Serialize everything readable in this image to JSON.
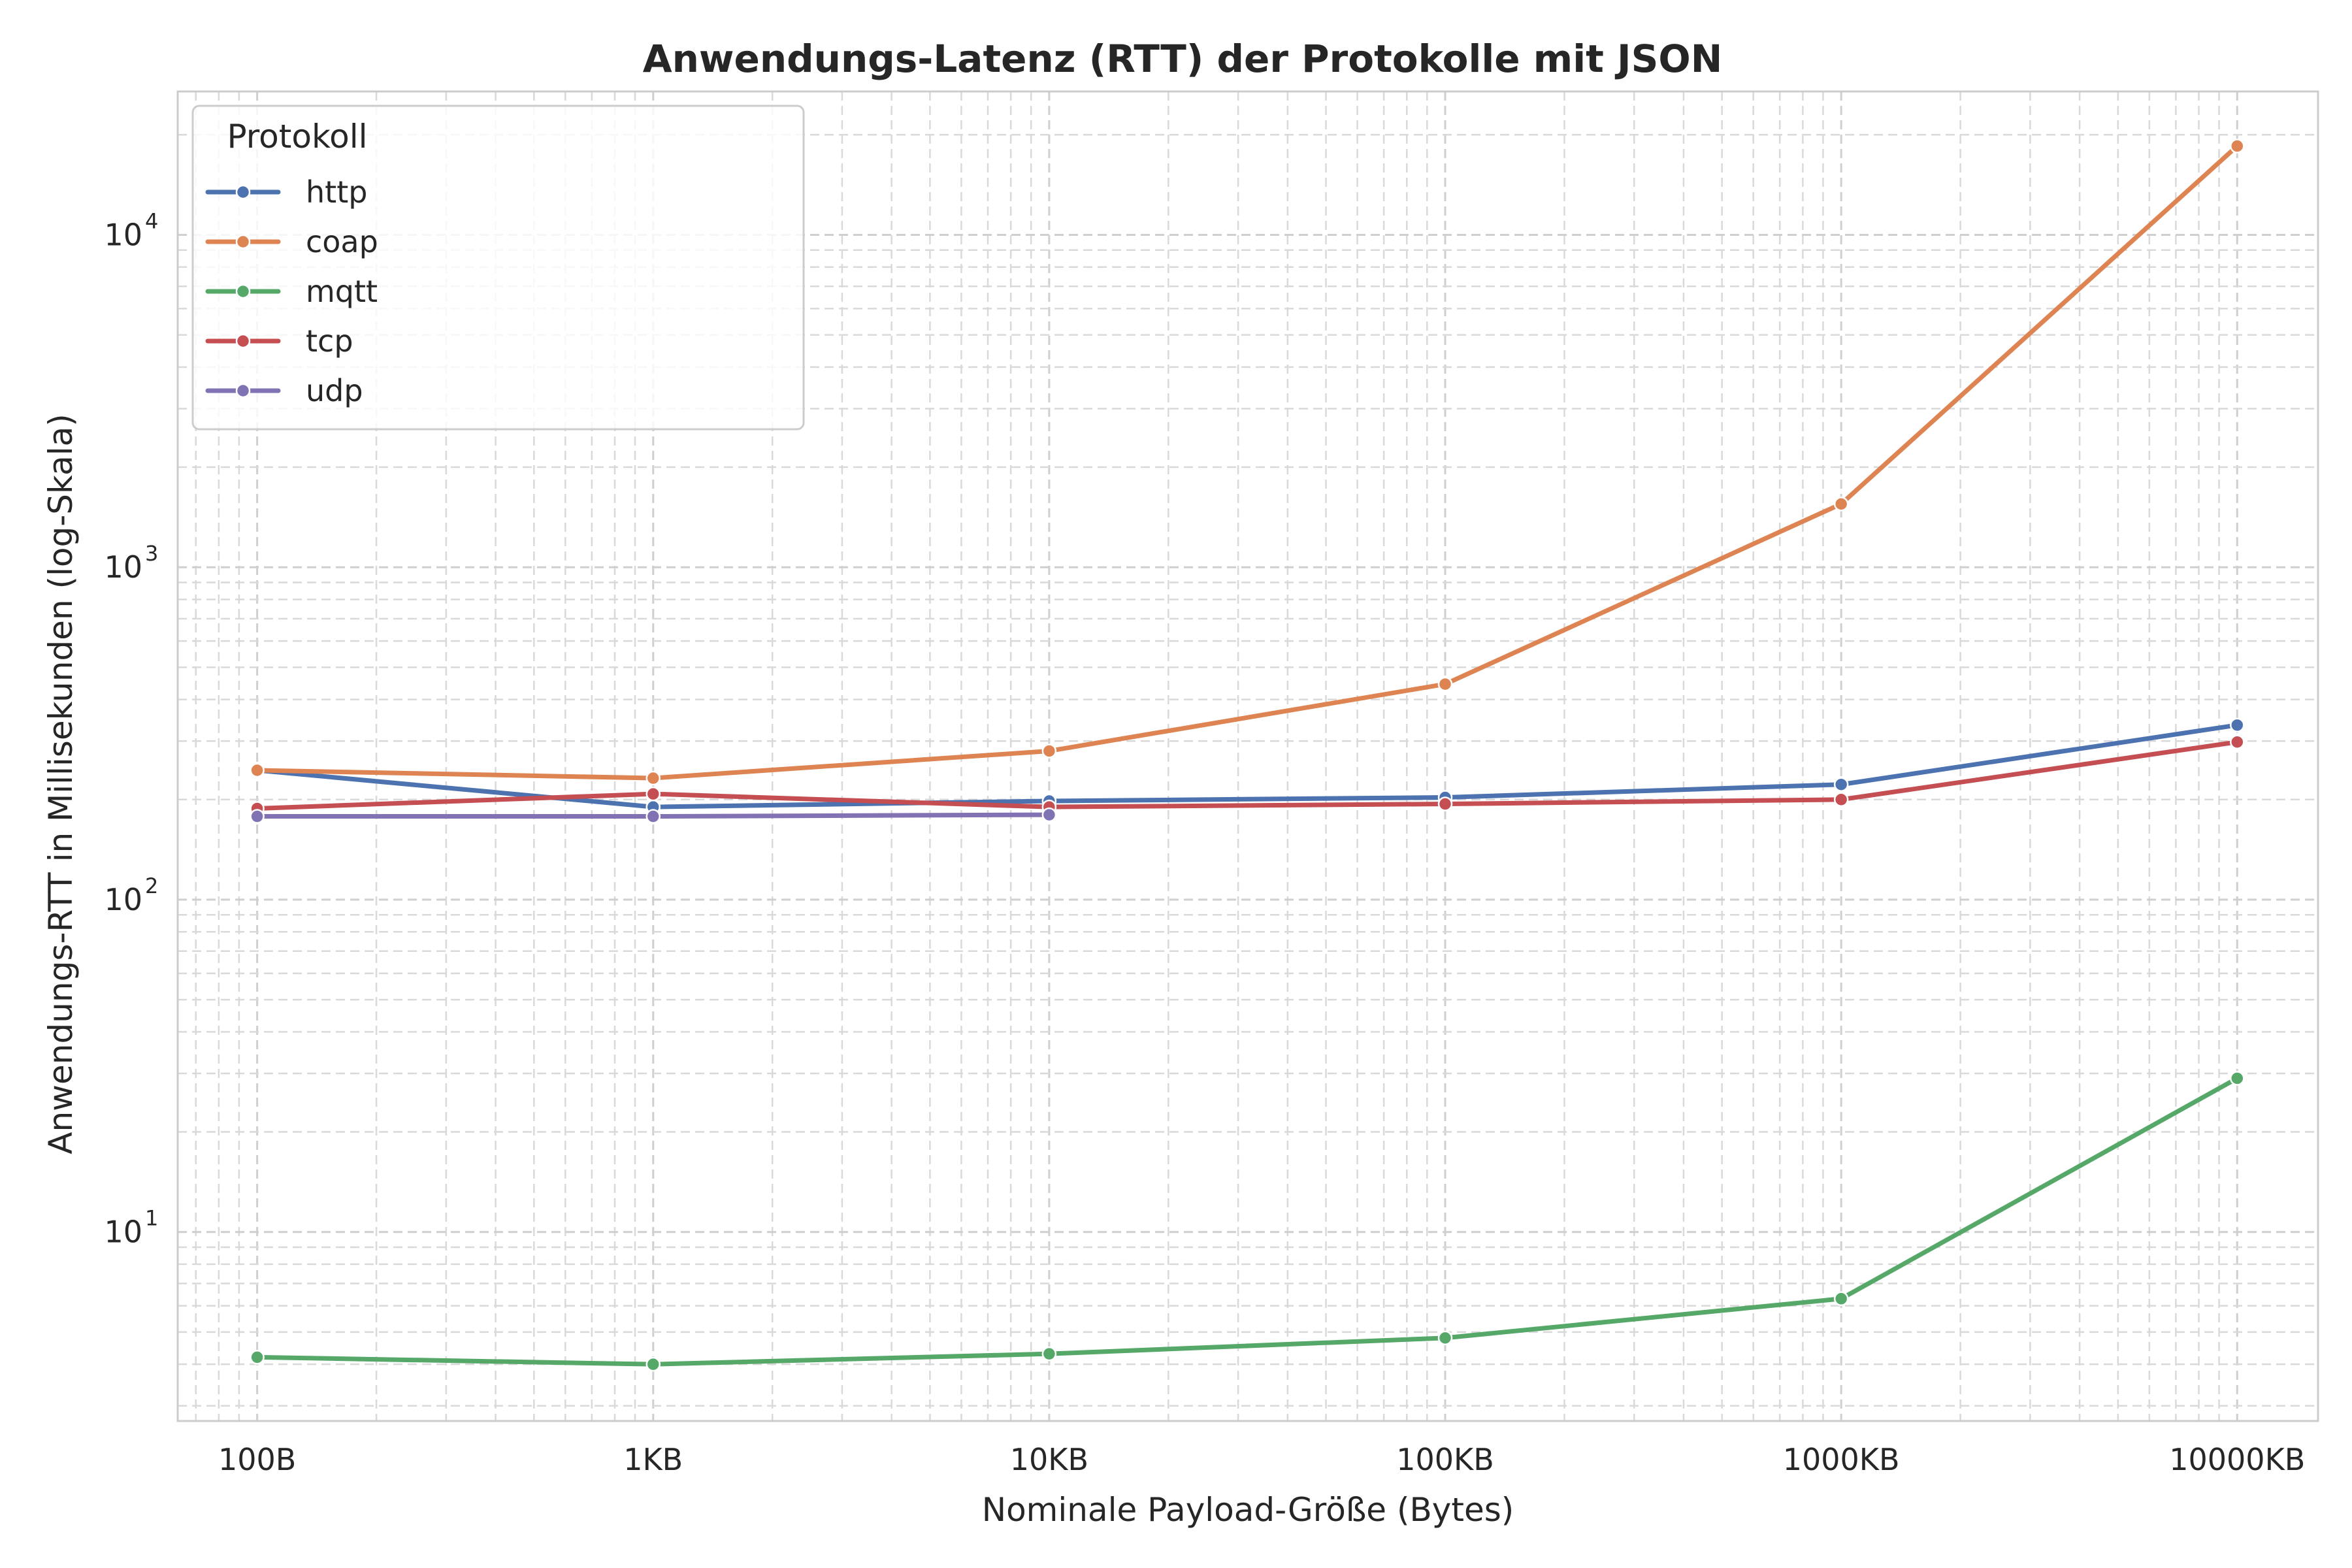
{
  "chart_data": {
    "type": "line",
    "title": "Anwendungs-Latenz (RTT) der Protokolle mit JSON",
    "xlabel": "Nominale Payload-Größe (Bytes)",
    "ylabel": "Anwendungs-RTT in Millisekunden (log-Skala)",
    "xscale": "log",
    "yscale": "log",
    "grid": true,
    "x": [
      100,
      1000,
      10000,
      100000,
      1000000,
      10000000
    ],
    "xticklabels": [
      "100B",
      "1KB",
      "10KB",
      "100KB",
      "1000KB",
      "10000KB"
    ],
    "xlim": [
      63,
      16000000
    ],
    "ylim": [
      2.7,
      27000
    ],
    "yticks": [
      {
        "value": 10,
        "base": "10",
        "exp": "1"
      },
      {
        "value": 100,
        "base": "10",
        "exp": "2"
      },
      {
        "value": 1000,
        "base": "10",
        "exp": "3"
      },
      {
        "value": 10000,
        "base": "10",
        "exp": "4"
      }
    ],
    "legend": {
      "title": "Protokoll",
      "position": "top-left"
    },
    "series": [
      {
        "name": "http",
        "color": "#4c72b0",
        "values": [
          245,
          190,
          198,
          203,
          222,
          335
        ]
      },
      {
        "name": "coap",
        "color": "#dd8452",
        "values": [
          245,
          232,
          280,
          445,
          1550,
          18500
        ]
      },
      {
        "name": "mqtt",
        "color": "#55a868",
        "values": [
          4.2,
          4.0,
          4.3,
          4.8,
          6.3,
          29
        ]
      },
      {
        "name": "tcp",
        "color": "#c44e52",
        "values": [
          188,
          208,
          190,
          194,
          200,
          298
        ]
      },
      {
        "name": "udp",
        "color": "#8172b3",
        "values": [
          178,
          178,
          180,
          null,
          null,
          null
        ]
      }
    ]
  }
}
